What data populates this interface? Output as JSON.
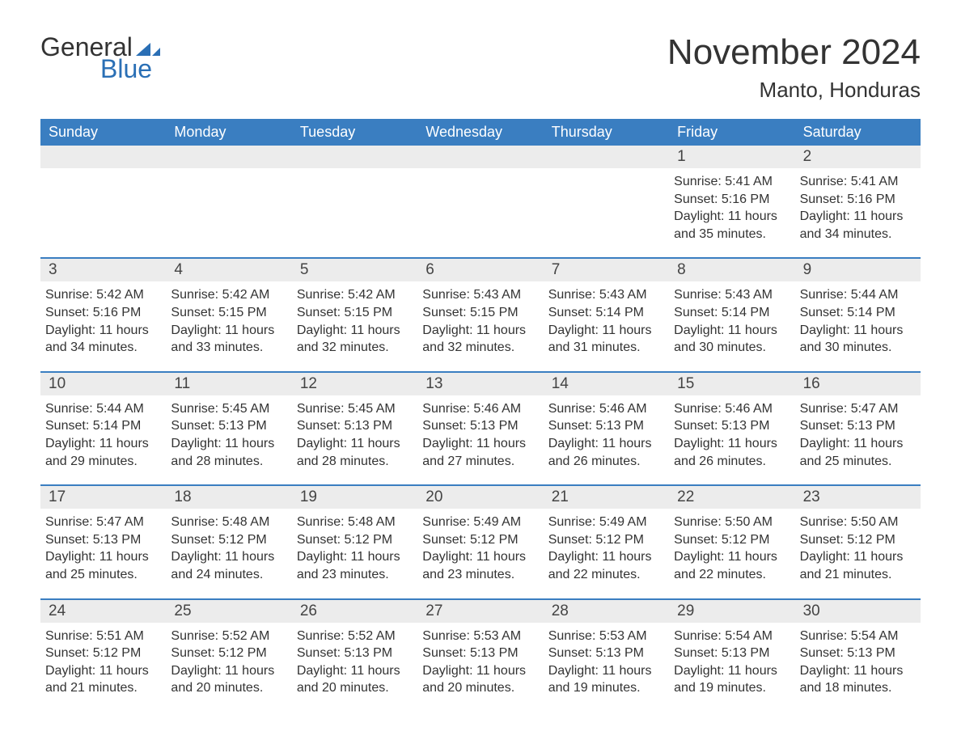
{
  "logo": {
    "word1": "General",
    "word2": "Blue"
  },
  "title": "November 2024",
  "location": "Manto, Honduras",
  "style": {
    "header_bg": "#3a7ec1",
    "header_text": "#ffffff",
    "row_separator": "#3a7ec1",
    "daynum_bg": "#ececec",
    "body_text": "#333333",
    "logo_accent": "#2a6fb5",
    "page_bg": "#ffffff",
    "title_fontsize": 44,
    "location_fontsize": 26,
    "weekday_fontsize": 18,
    "body_fontsize": 16
  },
  "weekdays": [
    "Sunday",
    "Monday",
    "Tuesday",
    "Wednesday",
    "Thursday",
    "Friday",
    "Saturday"
  ],
  "weeks": [
    [
      null,
      null,
      null,
      null,
      null,
      {
        "n": "1",
        "sr": "5:41 AM",
        "ss": "5:16 PM",
        "dl": "11 hours and 35 minutes."
      },
      {
        "n": "2",
        "sr": "5:41 AM",
        "ss": "5:16 PM",
        "dl": "11 hours and 34 minutes."
      }
    ],
    [
      {
        "n": "3",
        "sr": "5:42 AM",
        "ss": "5:16 PM",
        "dl": "11 hours and 34 minutes."
      },
      {
        "n": "4",
        "sr": "5:42 AM",
        "ss": "5:15 PM",
        "dl": "11 hours and 33 minutes."
      },
      {
        "n": "5",
        "sr": "5:42 AM",
        "ss": "5:15 PM",
        "dl": "11 hours and 32 minutes."
      },
      {
        "n": "6",
        "sr": "5:43 AM",
        "ss": "5:15 PM",
        "dl": "11 hours and 32 minutes."
      },
      {
        "n": "7",
        "sr": "5:43 AM",
        "ss": "5:14 PM",
        "dl": "11 hours and 31 minutes."
      },
      {
        "n": "8",
        "sr": "5:43 AM",
        "ss": "5:14 PM",
        "dl": "11 hours and 30 minutes."
      },
      {
        "n": "9",
        "sr": "5:44 AM",
        "ss": "5:14 PM",
        "dl": "11 hours and 30 minutes."
      }
    ],
    [
      {
        "n": "10",
        "sr": "5:44 AM",
        "ss": "5:14 PM",
        "dl": "11 hours and 29 minutes."
      },
      {
        "n": "11",
        "sr": "5:45 AM",
        "ss": "5:13 PM",
        "dl": "11 hours and 28 minutes."
      },
      {
        "n": "12",
        "sr": "5:45 AM",
        "ss": "5:13 PM",
        "dl": "11 hours and 28 minutes."
      },
      {
        "n": "13",
        "sr": "5:46 AM",
        "ss": "5:13 PM",
        "dl": "11 hours and 27 minutes."
      },
      {
        "n": "14",
        "sr": "5:46 AM",
        "ss": "5:13 PM",
        "dl": "11 hours and 26 minutes."
      },
      {
        "n": "15",
        "sr": "5:46 AM",
        "ss": "5:13 PM",
        "dl": "11 hours and 26 minutes."
      },
      {
        "n": "16",
        "sr": "5:47 AM",
        "ss": "5:13 PM",
        "dl": "11 hours and 25 minutes."
      }
    ],
    [
      {
        "n": "17",
        "sr": "5:47 AM",
        "ss": "5:13 PM",
        "dl": "11 hours and 25 minutes."
      },
      {
        "n": "18",
        "sr": "5:48 AM",
        "ss": "5:12 PM",
        "dl": "11 hours and 24 minutes."
      },
      {
        "n": "19",
        "sr": "5:48 AM",
        "ss": "5:12 PM",
        "dl": "11 hours and 23 minutes."
      },
      {
        "n": "20",
        "sr": "5:49 AM",
        "ss": "5:12 PM",
        "dl": "11 hours and 23 minutes."
      },
      {
        "n": "21",
        "sr": "5:49 AM",
        "ss": "5:12 PM",
        "dl": "11 hours and 22 minutes."
      },
      {
        "n": "22",
        "sr": "5:50 AM",
        "ss": "5:12 PM",
        "dl": "11 hours and 22 minutes."
      },
      {
        "n": "23",
        "sr": "5:50 AM",
        "ss": "5:12 PM",
        "dl": "11 hours and 21 minutes."
      }
    ],
    [
      {
        "n": "24",
        "sr": "5:51 AM",
        "ss": "5:12 PM",
        "dl": "11 hours and 21 minutes."
      },
      {
        "n": "25",
        "sr": "5:52 AM",
        "ss": "5:12 PM",
        "dl": "11 hours and 20 minutes."
      },
      {
        "n": "26",
        "sr": "5:52 AM",
        "ss": "5:13 PM",
        "dl": "11 hours and 20 minutes."
      },
      {
        "n": "27",
        "sr": "5:53 AM",
        "ss": "5:13 PM",
        "dl": "11 hours and 20 minutes."
      },
      {
        "n": "28",
        "sr": "5:53 AM",
        "ss": "5:13 PM",
        "dl": "11 hours and 19 minutes."
      },
      {
        "n": "29",
        "sr": "5:54 AM",
        "ss": "5:13 PM",
        "dl": "11 hours and 19 minutes."
      },
      {
        "n": "30",
        "sr": "5:54 AM",
        "ss": "5:13 PM",
        "dl": "11 hours and 18 minutes."
      }
    ]
  ],
  "labels": {
    "sunrise": "Sunrise:",
    "sunset": "Sunset:",
    "daylight": "Daylight:"
  }
}
